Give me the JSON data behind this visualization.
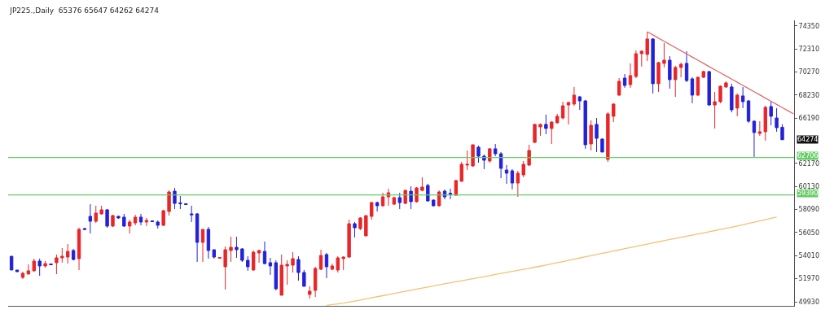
{
  "chart_data": {
    "type": "candlestick",
    "title": "JP225.,Daily  65376 65647 64262 64274",
    "categories": [
      null,
      null,
      null,
      null,
      null,
      null,
      null,
      null,
      null,
      null,
      null,
      null,
      null,
      null,
      null,
      null,
      null,
      null,
      null,
      null,
      null,
      null,
      null,
      null,
      null,
      null,
      null,
      null,
      null,
      null,
      null,
      null,
      null,
      null,
      null,
      null,
      null,
      null,
      null,
      null,
      null,
      null,
      null,
      null,
      null,
      null,
      null,
      null,
      null,
      null,
      null,
      null,
      null,
      null,
      null,
      null,
      null,
      null,
      null,
      null,
      null,
      null,
      null,
      null,
      null,
      null,
      null,
      null,
      null,
      null,
      null,
      null,
      null,
      null,
      null,
      null,
      null,
      null,
      null,
      null,
      null,
      null,
      null,
      null,
      null,
      null,
      null,
      null,
      null,
      null,
      null,
      null,
      null,
      null,
      null,
      null,
      null,
      null,
      null,
      null,
      null,
      null,
      null,
      null,
      null,
      null,
      null,
      null,
      null,
      null,
      null,
      null,
      null,
      null,
      null,
      null,
      null,
      null,
      null,
      null,
      null,
      null,
      null,
      null,
      null,
      null,
      null,
      null,
      null,
      null,
      null,
      null,
      null,
      null,
      null,
      null,
      null,
      null,
      null,
      null
    ],
    "ohlc": [
      [
        53960,
        53960,
        52740,
        52740
      ],
      [
        52740,
        52740,
        52590,
        52590
      ],
      [
        52090,
        52590,
        51950,
        52450
      ],
      [
        52380,
        53240,
        52380,
        52670
      ],
      [
        52670,
        53750,
        52590,
        53530
      ],
      [
        53530,
        53750,
        52230,
        53100
      ],
      [
        53100,
        53530,
        52950,
        53310
      ],
      [
        53280,
        53310,
        53170,
        53210
      ],
      [
        53390,
        54110,
        52380,
        53820
      ],
      [
        53820,
        54680,
        53390,
        53960
      ],
      [
        53890,
        55040,
        53310,
        54390
      ],
      [
        54470,
        54610,
        53600,
        53670
      ],
      [
        53750,
        56480,
        52740,
        56340
      ],
      [
        56410,
        56480,
        56270,
        56340
      ],
      [
        57490,
        58570,
        55980,
        57060
      ],
      [
        57060,
        58430,
        56910,
        57780
      ],
      [
        57710,
        58430,
        57630,
        58070
      ],
      [
        58070,
        58140,
        56480,
        56630
      ],
      [
        56630,
        57630,
        56550,
        57560
      ],
      [
        57490,
        57560,
        57270,
        57350
      ],
      [
        57420,
        57710,
        56550,
        56630
      ],
      [
        56630,
        57200,
        55980,
        56990
      ],
      [
        56910,
        57630,
        56700,
        57420
      ],
      [
        57420,
        57710,
        56700,
        56990
      ],
      [
        56990,
        57350,
        56630,
        57130
      ],
      [
        57090,
        57130,
        56990,
        57020
      ],
      [
        56990,
        57130,
        56410,
        56700
      ],
      [
        56700,
        58070,
        56630,
        57990
      ],
      [
        57920,
        59790,
        57560,
        59650
      ],
      [
        59720,
        60010,
        58140,
        58640
      ],
      [
        58680,
        59290,
        58140,
        58610
      ],
      [
        58610,
        58640,
        58500,
        58530
      ],
      [
        57710,
        58430,
        56990,
        57630
      ],
      [
        57710,
        57780,
        53460,
        55190
      ],
      [
        55190,
        56340,
        53460,
        56340
      ],
      [
        56340,
        56550,
        53750,
        54470
      ],
      [
        54540,
        54540,
        53750,
        53890
      ],
      [
        53780,
        53890,
        53750,
        53850
      ],
      [
        53030,
        54830,
        51010,
        54540
      ],
      [
        54470,
        55690,
        53460,
        54750
      ],
      [
        54750,
        55690,
        53820,
        54540
      ],
      [
        54610,
        54680,
        53460,
        53600
      ],
      [
        53600,
        53960,
        52670,
        53030
      ],
      [
        52740,
        54470,
        52670,
        54320
      ],
      [
        54250,
        54540,
        53390,
        54470
      ],
      [
        54390,
        55260,
        53240,
        53310
      ],
      [
        53390,
        53820,
        52310,
        53100
      ],
      [
        53390,
        53600,
        50940,
        51080
      ],
      [
        50510,
        54110,
        50510,
        53170
      ],
      [
        53100,
        53600,
        51440,
        53240
      ],
      [
        53170,
        54320,
        52520,
        53750
      ],
      [
        53670,
        53960,
        51800,
        52520
      ],
      [
        52520,
        52740,
        51300,
        51300
      ],
      [
        50580,
        51300,
        50220,
        50870
      ],
      [
        50940,
        53030,
        50360,
        52880
      ],
      [
        52810,
        54540,
        52740,
        54030
      ],
      [
        54110,
        54250,
        52020,
        53030
      ],
      [
        52810,
        53310,
        52740,
        53100
      ],
      [
        52740,
        53960,
        52520,
        53820
      ],
      [
        53750,
        53960,
        52740,
        53890
      ],
      [
        53890,
        57200,
        53820,
        56840
      ],
      [
        56840,
        56990,
        55620,
        56480
      ],
      [
        56410,
        57420,
        56270,
        57350
      ],
      [
        55760,
        57560,
        55760,
        57560
      ],
      [
        57490,
        58790,
        57200,
        58710
      ],
      [
        58710,
        58790,
        57920,
        58430
      ],
      [
        58430,
        59580,
        58350,
        59220
      ],
      [
        59220,
        59940,
        58430,
        59580
      ],
      [
        58570,
        59220,
        58500,
        59150
      ],
      [
        59150,
        59580,
        58140,
        58710
      ],
      [
        58640,
        59870,
        58570,
        59790
      ],
      [
        59720,
        60150,
        58140,
        58790
      ],
      [
        58790,
        60080,
        58710,
        60010
      ],
      [
        59790,
        60950,
        59720,
        60080
      ],
      [
        60230,
        60370,
        58790,
        58860
      ],
      [
        58930,
        59000,
        58350,
        58430
      ],
      [
        58430,
        59790,
        58350,
        59650
      ],
      [
        59720,
        59870,
        59000,
        59220
      ],
      [
        59540,
        59940,
        59000,
        59470
      ],
      [
        59360,
        60730,
        59290,
        60660
      ],
      [
        60590,
        62310,
        60590,
        62100
      ],
      [
        62030,
        63320,
        61590,
        62100
      ],
      [
        61950,
        63830,
        61880,
        63830
      ],
      [
        63610,
        63750,
        62240,
        62820
      ],
      [
        62820,
        62960,
        61670,
        62460
      ],
      [
        62390,
        63540,
        62240,
        63470
      ],
      [
        63470,
        63900,
        62820,
        63030
      ],
      [
        63030,
        63180,
        60870,
        61740
      ],
      [
        61590,
        62030,
        60370,
        61310
      ],
      [
        61520,
        61670,
        59870,
        60440
      ],
      [
        60440,
        61520,
        59220,
        61310
      ],
      [
        61160,
        62390,
        60950,
        62100
      ],
      [
        62030,
        63830,
        61950,
        63320
      ],
      [
        64040,
        65700,
        63970,
        65630
      ],
      [
        65410,
        65700,
        64620,
        65630
      ],
      [
        65630,
        66490,
        64760,
        65270
      ],
      [
        65270,
        65910,
        63900,
        65840
      ],
      [
        65770,
        66560,
        65700,
        66350
      ],
      [
        66200,
        67640,
        66060,
        67280
      ],
      [
        67350,
        67640,
        65630,
        67570
      ],
      [
        67430,
        68940,
        67280,
        68220
      ],
      [
        68070,
        68150,
        66920,
        67710
      ],
      [
        67710,
        67790,
        63470,
        63830
      ],
      [
        63900,
        65990,
        63320,
        65550
      ],
      [
        65630,
        66200,
        63180,
        64400
      ],
      [
        64330,
        64400,
        63180,
        63180
      ],
      [
        62530,
        66710,
        62310,
        66560
      ],
      [
        66350,
        67500,
        65840,
        67430
      ],
      [
        68220,
        69730,
        68150,
        69440
      ],
      [
        69730,
        70090,
        68870,
        69080
      ],
      [
        69150,
        71030,
        68870,
        69950
      ],
      [
        69870,
        72180,
        69730,
        71890
      ],
      [
        71890,
        72180,
        70740,
        72110
      ],
      [
        71820,
        73830,
        71240,
        73190
      ],
      [
        73190,
        73260,
        68360,
        69230
      ],
      [
        69230,
        71170,
        68510,
        71100
      ],
      [
        71030,
        72830,
        70670,
        71310
      ],
      [
        71310,
        71670,
        68790,
        69590
      ],
      [
        69590,
        70810,
        68070,
        70670
      ],
      [
        70670,
        71100,
        69800,
        70950
      ],
      [
        71030,
        72110,
        69370,
        69510
      ],
      [
        69660,
        69800,
        67500,
        68220
      ],
      [
        68220,
        69870,
        68150,
        69800
      ],
      [
        69800,
        70380,
        69730,
        70310
      ],
      [
        70310,
        70310,
        67280,
        67350
      ],
      [
        67350,
        68510,
        65270,
        67640
      ],
      [
        67640,
        69080,
        67500,
        69010
      ],
      [
        68940,
        69440,
        68870,
        69300
      ],
      [
        68940,
        69230,
        66710,
        66920
      ],
      [
        67070,
        68360,
        66350,
        68220
      ],
      [
        68150,
        68940,
        67070,
        67640
      ],
      [
        67710,
        67790,
        65770,
        65910
      ],
      [
        65910,
        65990,
        62750,
        64910
      ],
      [
        64830,
        65910,
        64620,
        64980
      ],
      [
        64980,
        67280,
        64190,
        67140
      ],
      [
        67210,
        67640,
        65550,
        66350
      ],
      [
        66200,
        67070,
        64980,
        65340
      ],
      [
        65376,
        65647,
        64262,
        64274
      ],
      null,
      null
    ],
    "colors": [
      "#2222d8",
      "#2222d8",
      "#e8262a",
      "#e8262a",
      "#e8262a",
      "#2222d8",
      "#e8262a",
      "#2222d8",
      "#e8262a",
      "#e8262a",
      "#e8262a",
      "#2222d8",
      "#e8262a",
      "#2222d8",
      "#2222d8",
      "#e8262a",
      "#e8262a",
      "#2222d8",
      "#e8262a",
      "#2222d8",
      "#2222d8",
      "#e8262a",
      "#e8262a",
      "#2222d8",
      "#e8262a",
      "#2222d8",
      "#2222d8",
      "#e8262a",
      "#e8262a",
      "#2222d8",
      "#2222d8",
      "#2222d8",
      "#2222d8",
      "#2222d8",
      "#e8262a",
      "#2222d8",
      "#2222d8",
      "#e8262a",
      "#e8262a",
      "#e8262a",
      "#2222d8",
      "#2222d8",
      "#2222d8",
      "#e8262a",
      "#e8262a",
      "#2222d8",
      "#2222d8",
      "#2222d8",
      "#e8262a",
      "#e8262a",
      "#e8262a",
      "#2222d8",
      "#2222d8",
      "#e8262a",
      "#e8262a",
      "#e8262a",
      "#2222d8",
      "#e8262a",
      "#e8262a",
      "#e8262a",
      "#e8262a",
      "#2222d8",
      "#e8262a",
      "#e8262a",
      "#e8262a",
      "#2222d8",
      "#e8262a",
      "#e8262a",
      "#e8262a",
      "#2222d8",
      "#e8262a",
      "#2222d8",
      "#e8262a",
      "#e8262a",
      "#2222d8",
      "#2222d8",
      "#e8262a",
      "#2222d8",
      "#2222d8",
      "#e8262a",
      "#e8262a",
      "#e8262a",
      "#e8262a",
      "#2222d8",
      "#2222d8",
      "#e8262a",
      "#2222d8",
      "#2222d8",
      "#2222d8",
      "#2222d8",
      "#e8262a",
      "#e8262a",
      "#e8262a",
      "#e8262a",
      "#e8262a",
      "#2222d8",
      "#e8262a",
      "#e8262a",
      "#e8262a",
      "#e8262a",
      "#e8262a",
      "#2222d8",
      "#2222d8",
      "#e8262a",
      "#2222d8",
      "#2222d8",
      "#e8262a",
      "#e8262a",
      "#e8262a",
      "#2222d8",
      "#e8262a",
      "#e8262a",
      "#e8262a",
      "#e8262a",
      "#2222d8",
      "#e8262a",
      "#e8262a",
      "#2222d8",
      "#e8262a",
      "#e8262a",
      "#2222d8",
      "#2222d8",
      "#e8262a",
      "#e8262a",
      "#2222d8",
      "#e8262a",
      "#e8262a",
      "#e8262a",
      "#2222d8",
      "#e8262a",
      "#2222d8",
      "#2222d8",
      "#2222d8",
      "#e8262a",
      "#e8262a",
      "#2222d8",
      "#2222d8",
      "#2222d8",
      null,
      null
    ],
    "series": [
      {
        "type": "line",
        "color": "#f2c274",
        "values": [
          null,
          null,
          null,
          null,
          null,
          null,
          null,
          null,
          null,
          null,
          null,
          null,
          null,
          null,
          null,
          null,
          null,
          null,
          null,
          null,
          null,
          null,
          null,
          null,
          null,
          null,
          null,
          null,
          null,
          null,
          null,
          null,
          null,
          null,
          null,
          null,
          null,
          null,
          null,
          null,
          null,
          null,
          null,
          null,
          null,
          null,
          null,
          null,
          null,
          null,
          null,
          null,
          null,
          null,
          null,
          null,
          49620,
          49680,
          49740,
          49810,
          49900,
          50000,
          50090,
          50190,
          50280,
          50380,
          50470,
          50570,
          50660,
          50760,
          50850,
          50950,
          51050,
          51140,
          51240,
          51330,
          51430,
          51520,
          51610,
          51700,
          51800,
          51890,
          51980,
          52070,
          52160,
          52250,
          52350,
          52440,
          52530,
          52620,
          52710,
          52800,
          52890,
          52990,
          53080,
          53180,
          53290,
          53390,
          53490,
          53600,
          53700,
          53800,
          53910,
          54010,
          54110,
          54220,
          54320,
          54420,
          54520,
          54630,
          54730,
          54830,
          54940,
          55040,
          55140,
          55240,
          55340,
          55440,
          55540,
          55640,
          55740,
          55830,
          55930,
          56030,
          56130,
          56230,
          56330,
          56430,
          56530,
          56640,
          56750,
          56860,
          56980,
          57090,
          57200,
          57320,
          57430,
          null,
          null,
          null
        ]
      },
      {
        "type": "line",
        "color": "#e06a6a",
        "values": [
          null,
          null,
          null,
          null,
          null,
          null,
          null,
          null,
          null,
          null,
          null,
          null,
          null,
          null,
          null,
          null,
          null,
          null,
          null,
          null,
          null,
          null,
          null,
          null,
          null,
          null,
          null,
          null,
          null,
          null,
          null,
          null,
          null,
          null,
          null,
          null,
          null,
          null,
          null,
          null,
          null,
          null,
          null,
          null,
          null,
          null,
          null,
          null,
          null,
          null,
          null,
          null,
          null,
          null,
          null,
          null,
          null,
          null,
          null,
          null,
          null,
          null,
          null,
          null,
          null,
          null,
          null,
          null,
          null,
          null,
          null,
          null,
          null,
          null,
          null,
          null,
          null,
          null,
          null,
          null,
          null,
          null,
          null,
          null,
          null,
          null,
          null,
          null,
          null,
          null,
          null,
          null,
          null,
          null,
          null,
          null,
          null,
          null,
          null,
          null,
          null,
          null,
          null,
          null,
          null,
          null,
          null,
          null,
          null,
          null,
          null,
          null,
          null,
          73830,
          73550,
          73270,
          72990,
          72710,
          72430,
          72150,
          71870,
          71590,
          71310,
          71030,
          70750,
          70470,
          70200,
          69920,
          69640,
          69360,
          69080,
          68800,
          68520,
          68240,
          67960,
          67680,
          67400,
          67120,
          66840,
          66560
        ]
      }
    ],
    "ylim": [
      49570,
      74840
    ],
    "yticks": [
      49930,
      51970,
      54010,
      56050,
      58090,
      60130,
      62170,
      66190,
      68230,
      70270,
      72310,
      74350
    ],
    "tick_labels": "y",
    "ref_lines": [
      {
        "axis": "y",
        "value": 62706,
        "label": "62706",
        "color": "#66cc66"
      },
      {
        "axis": "y",
        "value": 59390,
        "label": "59390",
        "color": "#66cc66"
      }
    ],
    "annotations": [
      "64274"
    ]
  }
}
